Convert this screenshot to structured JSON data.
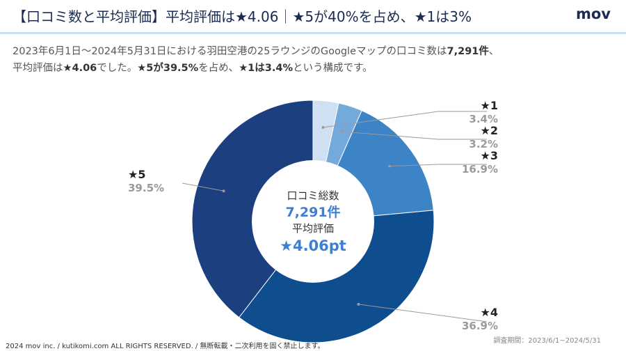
{
  "header": {
    "title": "【口コミ数と平均評価】平均評価は★4.06｜★5が40%を占め、★1は3%",
    "logo": "mov"
  },
  "description": {
    "line1_a": "2023年6月1日〜2024年5月31日における羽田空港の25ラウンジのGoogleマップの口コミ数は",
    "line1_b": "7,291件",
    "line1_c": "、",
    "line2_a": "平均評価は",
    "line2_b": "★4.06",
    "line2_c": "でした。",
    "line2_d": "★5が39.5%",
    "line2_e": "を占め、",
    "line2_f": "★1は3.4%",
    "line2_g": "という構成です。"
  },
  "center": {
    "label1": "口コミ総数",
    "value1": "7,291件",
    "label2": "平均評価",
    "value2": "★4.06pt"
  },
  "footer": {
    "copyright": "2024 mov inc. / kutikomi.com ALL RIGHTS RESERVED. / 無断転載・二次利用を固く禁止します。",
    "period": "調査期間：2023/6/1~2024/5/31"
  },
  "chart_data": {
    "type": "pie",
    "categories": [
      "★1",
      "★2",
      "★3",
      "★4",
      "★5"
    ],
    "values": [
      3.4,
      3.2,
      16.9,
      36.9,
      39.5
    ],
    "labels": [
      "3.4%",
      "3.2%",
      "16.9%",
      "36.9%",
      "39.5%"
    ],
    "colors": [
      "#cfe0f3",
      "#74a9dc",
      "#3d84c6",
      "#0e4d8e",
      "#1c3f80"
    ],
    "donut": true
  }
}
